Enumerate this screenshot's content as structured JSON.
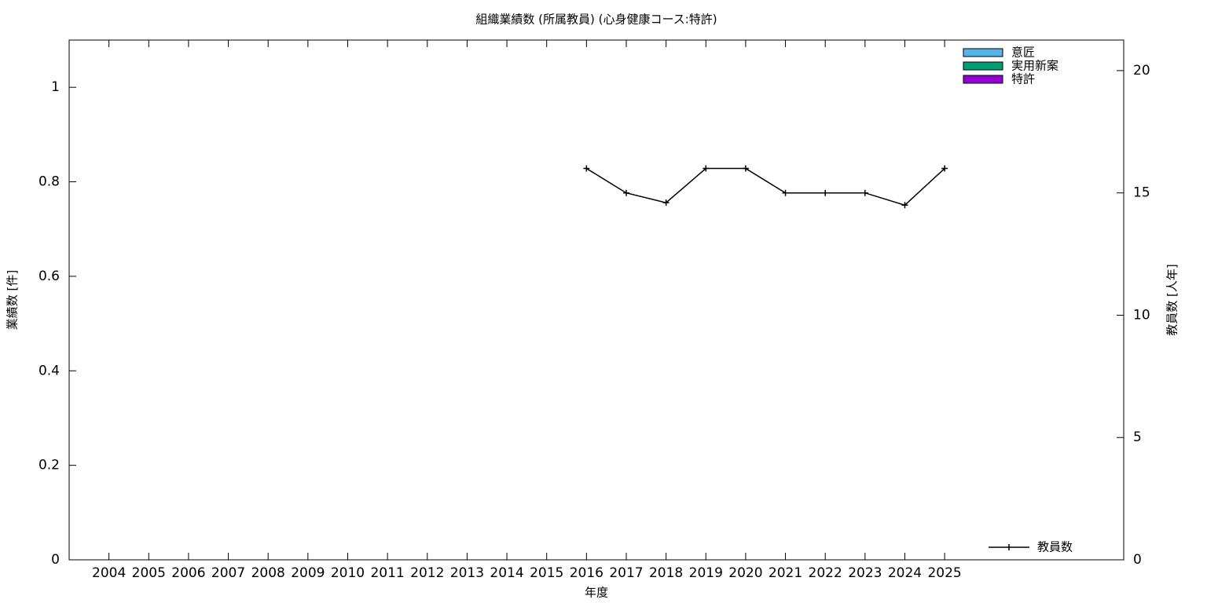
{
  "chart_data": {
    "type": "bar",
    "title": "組織業績数 (所属教員) (心身健康コース:特許)",
    "xlabel": "年度",
    "ylabel": "業績数 [件]",
    "y2label": "教員数 [人年]",
    "categories": [
      "2004",
      "2005",
      "2006",
      "2007",
      "2008",
      "2009",
      "2010",
      "2011",
      "2012",
      "2013",
      "2014",
      "2015",
      "2016",
      "2017",
      "2018",
      "2019",
      "2020",
      "2021",
      "2022",
      "2023",
      "2024",
      "2025"
    ],
    "series": [
      {
        "name": "意匠",
        "color": "#56b4e9",
        "values": [
          0,
          0,
          0,
          0,
          0,
          0,
          0,
          0,
          0,
          0,
          0,
          0,
          0,
          0,
          0,
          0,
          0,
          0,
          0,
          0,
          0,
          0
        ]
      },
      {
        "name": "実用新案",
        "color": "#009e73",
        "values": [
          0,
          0,
          0,
          0,
          0,
          0,
          0,
          0,
          0,
          0,
          0,
          0,
          0,
          0,
          0,
          0,
          0,
          0,
          0,
          0,
          0,
          0
        ]
      },
      {
        "name": "特許",
        "color": "#9400d3",
        "values": [
          0,
          0,
          0,
          0,
          0,
          0,
          0,
          0,
          0,
          0,
          0,
          0,
          0,
          0,
          0,
          0,
          0,
          0,
          0,
          0,
          0,
          0
        ]
      },
      {
        "name": "教員数",
        "color": "#000000",
        "type": "line",
        "axis": "y2",
        "values": [
          null,
          null,
          null,
          null,
          null,
          null,
          null,
          null,
          null,
          null,
          null,
          null,
          16,
          15,
          14.6,
          16,
          16,
          15,
          15,
          15,
          14.5,
          16
        ]
      }
    ],
    "ylim": [
      0,
      1.1
    ],
    "yticks": [
      0,
      0.2,
      0.4,
      0.6,
      0.8,
      1
    ],
    "y2lim": [
      0,
      21.25
    ],
    "y2ticks": [
      0,
      5,
      10,
      15,
      20
    ]
  }
}
